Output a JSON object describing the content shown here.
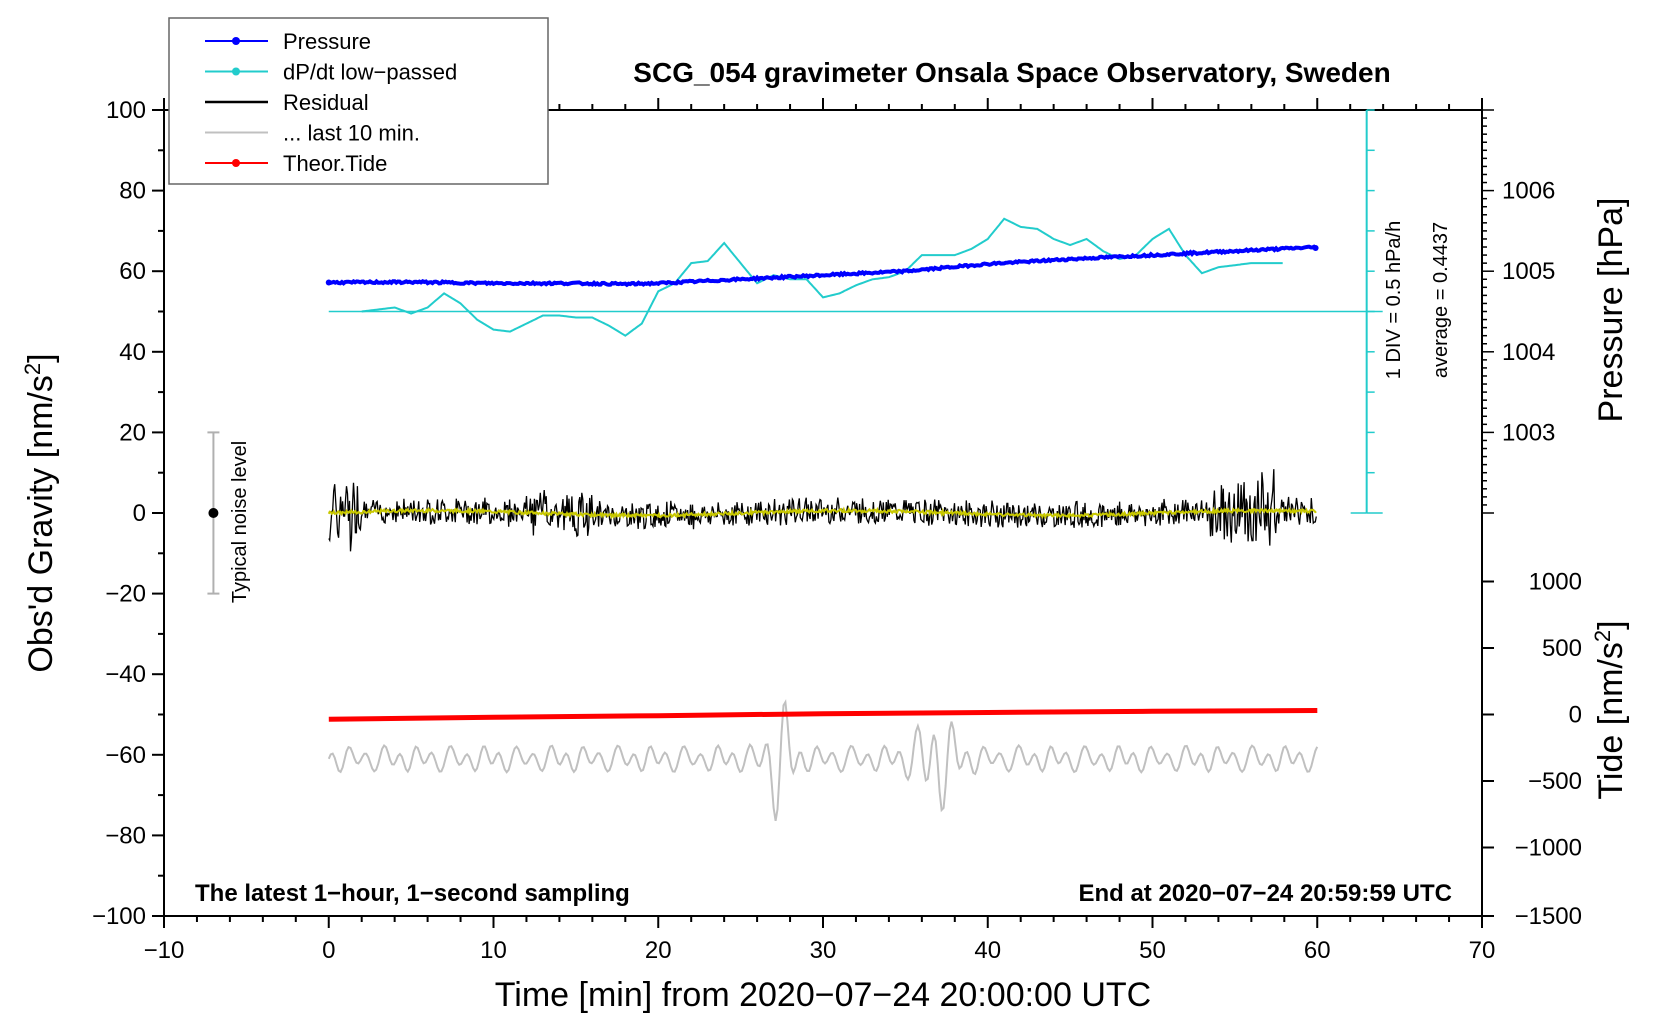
{
  "chart_data": {
    "type": "line",
    "title": "SCG_054 gravimeter Onsala Space Observatory, Sweden",
    "xlabel": "Time [min] from 2020−07−24 20:00:00 UTC",
    "ylabel_left": "Obs'd Gravity [nm/s",
    "ylabel_left_sup": "2",
    "ylabel_left_end": "]",
    "ylabel_pressure": "Pressure [hPa]",
    "ylabel_tide": "Tide [nm/s",
    "ylabel_tide_sup": "2",
    "ylabel_tide_end": "]",
    "xlim": [
      -10,
      70
    ],
    "ylim": [
      -100,
      100
    ],
    "x_ticks": [
      "−10",
      "0",
      "10",
      "20",
      "30",
      "40",
      "50",
      "60",
      "70"
    ],
    "x_tick_values": [
      -10,
      0,
      10,
      20,
      30,
      40,
      50,
      60,
      70
    ],
    "y_ticks": [
      "100",
      "80",
      "60",
      "40",
      "20",
      "0",
      "−20",
      "−40",
      "−60",
      "−80",
      "−100"
    ],
    "y_tick_values": [
      100,
      80,
      60,
      40,
      20,
      0,
      -20,
      -40,
      -60,
      -80,
      -100
    ],
    "pressure_axis": {
      "ticks": [
        "1006",
        "1005",
        "1004",
        "1003"
      ],
      "values": [
        1006,
        1005,
        1004,
        1003
      ],
      "at_gravity": [
        80,
        60,
        40,
        20
      ]
    },
    "tide_axis": {
      "ticks": [
        "1000",
        "500",
        "0",
        "−500",
        "−1000",
        "−1500"
      ],
      "values": [
        1000,
        500,
        0,
        -500,
        -1000,
        -1500
      ],
      "at_gravity": [
        -17,
        -33.5,
        -50,
        -66.5,
        -83,
        -100
      ]
    },
    "legend": [
      {
        "label": "Pressure",
        "color": "#0000ff",
        "marker": "dot"
      },
      {
        "label": "dP/dt low−passed",
        "color": "#22cccc",
        "marker": "dot"
      },
      {
        "label": "Residual",
        "color": "#000000",
        "marker": "none"
      },
      {
        "label": "... last 10 min.",
        "color": "#c0c0c0",
        "marker": "none"
      },
      {
        "label": "Theor.Tide",
        "color": "#ff0000",
        "marker": "dot"
      }
    ],
    "series": [
      {
        "name": "Pressure",
        "color": "#0000ff",
        "x": [
          0,
          5,
          10,
          15,
          18,
          20,
          25,
          30,
          35,
          40,
          45,
          50,
          55,
          60
        ],
        "y": [
          57.2,
          57.3,
          57.0,
          57.0,
          56.8,
          57.0,
          58.0,
          59.0,
          60.0,
          61.8,
          63.0,
          64.0,
          65.0,
          66.0
        ]
      },
      {
        "name": "dP/dt low-passed",
        "color": "#22cccc",
        "x": [
          2,
          3,
          4,
          5,
          6,
          7,
          8,
          9,
          10,
          11,
          12,
          13,
          14,
          15,
          16,
          17,
          18,
          19,
          20,
          21,
          22,
          23,
          24,
          25,
          26,
          27,
          28,
          29,
          30,
          31,
          32,
          33,
          34,
          35,
          36,
          37,
          38,
          39,
          40,
          41,
          42,
          43,
          44,
          45,
          46,
          47,
          48,
          49,
          50,
          51,
          52,
          53,
          54,
          55,
          56,
          57,
          58
        ],
        "y": [
          50,
          50.5,
          51,
          49.5,
          51,
          54.5,
          52,
          48,
          45.5,
          45,
          47,
          49,
          49,
          48.5,
          48.5,
          46.5,
          44,
          47,
          55,
          57,
          62,
          62.5,
          67,
          62,
          57,
          59,
          58,
          58,
          53.5,
          54.5,
          56.5,
          58,
          58.5,
          60,
          64,
          64,
          64,
          65.5,
          68,
          73,
          71,
          70.5,
          68,
          66.5,
          68,
          65,
          63,
          64,
          68,
          70.5,
          64,
          59.5,
          61,
          61.5,
          62,
          62,
          62
        ]
      },
      {
        "name": "Theor.Tide",
        "color": "#ff0000",
        "x": [
          0,
          10,
          20,
          30,
          40,
          50,
          60
        ],
        "y": [
          -51.2,
          -50.7,
          -50.3,
          -49.8,
          -49.5,
          -49.2,
          -49.0
        ]
      }
    ],
    "residual_envelope": "oscillation around 0 with amplitude about 3–12 nm/s2, largest near 0–2 and 54–57 min",
    "last_10_min": "grey trace around −61 with amplitude up to 12, largest bursts near 27 and 36–37 min",
    "dpdt_scale": {
      "zero_line_y": 50,
      "axis_x": 63,
      "axis_top_y": 100,
      "axis_bottom_y": 0
    },
    "dpdt_label_1": "1 DIV = 0.5 hPa/h",
    "dpdt_label_2": "average = 0.4437",
    "noise_bar": {
      "x": -7,
      "y": 0,
      "low": -20,
      "high": 20,
      "label": "Typical noise level"
    },
    "bottom_left_note": "The latest 1−hour, 1−second sampling",
    "bottom_right_note": "End at 2020−07−24 20:59:59 UTC"
  }
}
